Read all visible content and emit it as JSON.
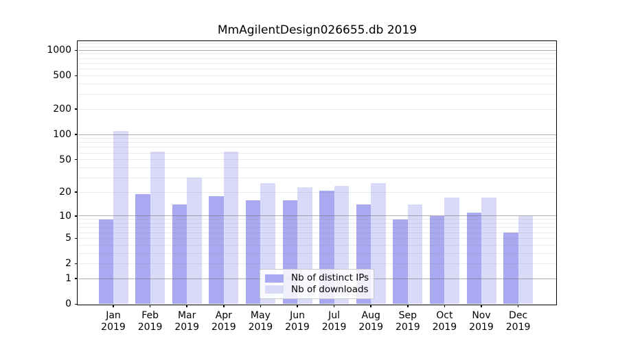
{
  "chart_data": {
    "type": "bar",
    "title": "MmAgilentDesign026655.db 2019",
    "categories": [
      "Jan",
      "Feb",
      "Mar",
      "Apr",
      "May",
      "Jun",
      "Jul",
      "Aug",
      "Sep",
      "Oct",
      "Nov",
      "Dec"
    ],
    "x_tick_second_line": "2019",
    "series": [
      {
        "name": "Nb of distinct IPs",
        "color": "#a9a9f1",
        "values": [
          9,
          19,
          14,
          18,
          16,
          16,
          21,
          14,
          9,
          10,
          11,
          6
        ]
      },
      {
        "name": "Nb of downloads",
        "color": "#d9d9f8",
        "values": [
          110,
          63,
          30,
          62,
          26,
          23,
          24,
          26,
          14,
          17,
          17,
          10
        ]
      }
    ],
    "yscale": "log1p",
    "ylim": [
      0,
      1280
    ],
    "y_tick_labels": [
      "0",
      "1",
      "2",
      "5",
      "10",
      "20",
      "50",
      "100",
      "200",
      "500",
      "1000"
    ],
    "y_major_gridlines": [
      1,
      10,
      100,
      1000
    ],
    "grid": true,
    "legend_position": "lower center",
    "colors": {
      "major_grid": "#b0b0b0",
      "minor_grid": "#ebebeb",
      "spine": "#000000",
      "background": "#ffffff"
    }
  }
}
